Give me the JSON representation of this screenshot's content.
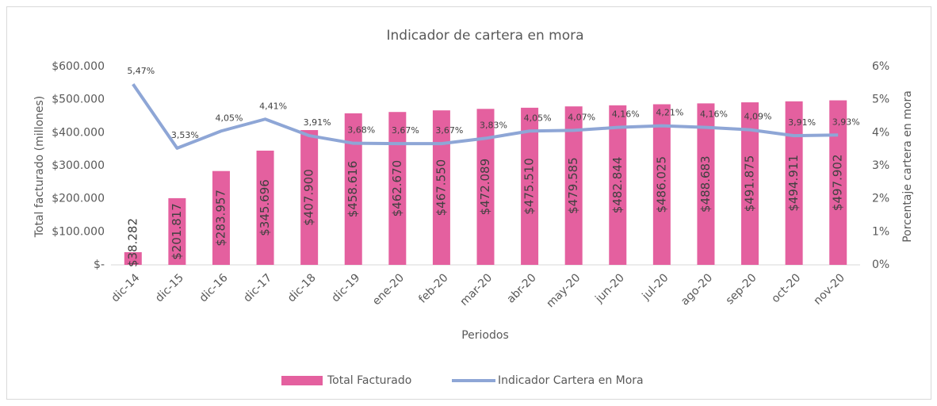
{
  "chart_data": {
    "type": "bar",
    "title": "Indicador de cartera en mora",
    "x_label": "Periodos",
    "y_label": "Total facturado (millones)",
    "y2_label": "Porcentaje cartera en mora",
    "categories": [
      "dic-14",
      "dic-15",
      "dic-16",
      "dic-17",
      "dic-18",
      "dic-19",
      "ene-20",
      "feb-20",
      "mar-20",
      "abr-20",
      "may-20",
      "jun-20",
      "jul-20",
      "ago-20",
      "sep-20",
      "oct-20",
      "nov-20"
    ],
    "series": [
      {
        "name": "Total Facturado",
        "type": "bar",
        "color": "#e4609f",
        "values": [
          38282,
          201817,
          283957,
          345696,
          407900,
          458616,
          462670,
          467550,
          472089,
          475510,
          479585,
          482844,
          486025,
          488683,
          491875,
          494911,
          497902
        ],
        "value_labels": [
          "$38.282",
          "$201.817",
          "$283.957",
          "$345.696",
          "$407.900",
          "$458.616",
          "$462.670",
          "$467.550",
          "$472.089",
          "$475.510",
          "$479.585",
          "$482.844",
          "$486.025",
          "$488.683",
          "$491.875",
          "$494.911",
          "$497.902"
        ]
      },
      {
        "name": "Indicador Cartera en Mora",
        "type": "line",
        "axis": "y2",
        "color": "#8ea6d6",
        "values": [
          5.47,
          3.53,
          4.05,
          4.41,
          3.91,
          3.68,
          3.67,
          3.67,
          3.83,
          4.05,
          4.07,
          4.16,
          4.21,
          4.16,
          4.09,
          3.91,
          3.93
        ],
        "value_labels": [
          "5,47%",
          "3,53%",
          "4,05%",
          "4,41%",
          "3,91%",
          "3,68%",
          "3,67%",
          "3,67%",
          "3,83%",
          "4,05%",
          "4,07%",
          "4,16%",
          "4,21%",
          "4,16%",
          "4,09%",
          "3,91%",
          "3,93%"
        ]
      }
    ],
    "ylim": [
      0,
      600000
    ],
    "yticks": [
      {
        "value": 0,
        "label": "$-"
      },
      {
        "value": 100000,
        "label": "$100.000"
      },
      {
        "value": 200000,
        "label": "$200.000"
      },
      {
        "value": 300000,
        "label": "$300.000"
      },
      {
        "value": 400000,
        "label": "$400.000"
      },
      {
        "value": 500000,
        "label": "$500.000"
      },
      {
        "value": 600000,
        "label": "$600.000"
      }
    ],
    "y2lim": [
      0,
      6
    ],
    "y2ticks": [
      {
        "value": 0,
        "label": "0%"
      },
      {
        "value": 1,
        "label": "1%"
      },
      {
        "value": 2,
        "label": "2%"
      },
      {
        "value": 3,
        "label": "3%"
      },
      {
        "value": 4,
        "label": "4%"
      },
      {
        "value": 5,
        "label": "5%"
      },
      {
        "value": 6,
        "label": "6%"
      }
    ],
    "legend": "bottom"
  }
}
